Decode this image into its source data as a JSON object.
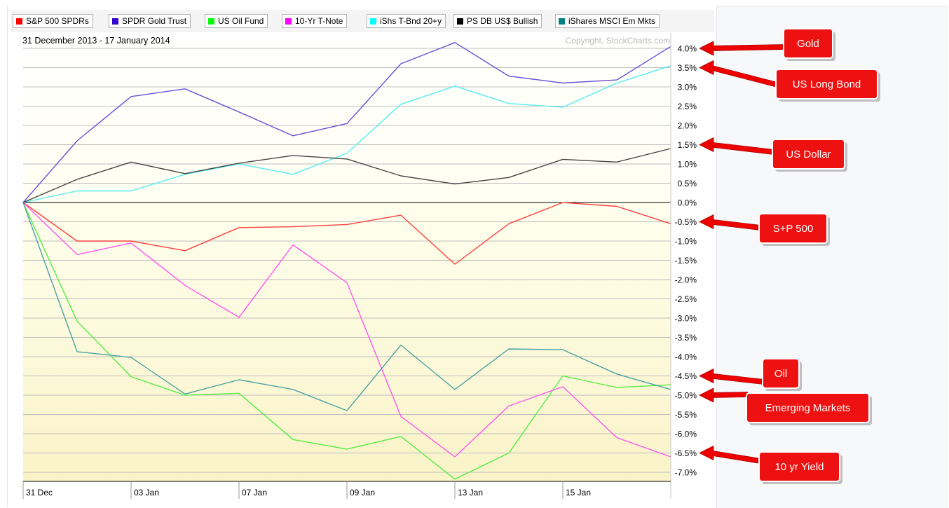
{
  "legend": [
    {
      "label": "S&P 500 SPDRs",
      "color": "#ff0000"
    },
    {
      "label": "SPDR Gold Trust",
      "color": "#3300cc"
    },
    {
      "label": "US Oil Fund",
      "color": "#00ff00"
    },
    {
      "label": "10-Yr T-Note",
      "color": "#ff00ff"
    },
    {
      "label": "iShs T-Bnd 20+y",
      "color": "#00ffff"
    },
    {
      "label": "PS DB US$ Bullish",
      "color": "#000000"
    },
    {
      "label": "iShares MSCI Em Mkts",
      "color": "#008080"
    }
  ],
  "chart_data": {
    "type": "line",
    "title": "31 December 2013 - 17 January 2014",
    "copyright": "Copyright, StockCharts.com",
    "x_tick_labels": [
      "31 Dec",
      "03 Jan",
      "07 Jan",
      "09 Jan",
      "13 Jan",
      "15 Jan"
    ],
    "x": [
      "31 Dec",
      "02 Jan",
      "03 Jan",
      "06 Jan",
      "07 Jan",
      "08 Jan",
      "09 Jan",
      "10 Jan",
      "13 Jan",
      "14 Jan",
      "15 Jan",
      "16 Jan",
      "17 Jan"
    ],
    "y_tick_labels": [
      "4.0%",
      "3.5%",
      "3.0%",
      "2.5%",
      "2.0%",
      "1.5%",
      "1.0%",
      "0.5%",
      "0.0%",
      "-0.5%",
      "-1.0%",
      "-1.5%",
      "-2.0%",
      "-2.5%",
      "-3.0%",
      "-3.5%",
      "-4.0%",
      "-4.5%",
      "-5.0%",
      "-5.5%",
      "-6.0%",
      "-6.5%",
      "-7.0%"
    ],
    "ylim": [
      -7.25,
      4.2
    ],
    "y_unit": "%",
    "grid": true,
    "series": [
      {
        "name": "S&P 500 SPDRs",
        "color": "#ff4040",
        "values": [
          0,
          -1.0,
          -1.0,
          -1.25,
          -0.65,
          -0.63,
          -0.57,
          -0.33,
          -1.6,
          -0.55,
          0.0,
          -0.1,
          -0.55
        ]
      },
      {
        "name": "SPDR Gold Trust",
        "color": "#6a4fd6",
        "values": [
          0,
          1.6,
          2.75,
          2.95,
          2.35,
          1.73,
          2.05,
          3.6,
          4.15,
          3.28,
          3.1,
          3.18,
          4.05
        ]
      },
      {
        "name": "US Oil Fund",
        "color": "#55ee44",
        "values": [
          0,
          -3.08,
          -4.52,
          -5.0,
          -4.95,
          -6.15,
          -6.4,
          -6.07,
          -7.18,
          -6.5,
          -4.5,
          -4.8,
          -4.73
        ]
      },
      {
        "name": "10-Yr T-Note",
        "color": "#ff55ee",
        "values": [
          0,
          -1.35,
          -1.05,
          -2.15,
          -2.98,
          -1.1,
          -2.08,
          -5.55,
          -6.6,
          -5.28,
          -4.78,
          -6.1,
          -6.6
        ]
      },
      {
        "name": "iShs T-Bnd 20+y",
        "color": "#55eeee",
        "values": [
          0,
          0.3,
          0.3,
          0.73,
          1.0,
          0.73,
          1.28,
          2.55,
          3.02,
          2.57,
          2.47,
          3.1,
          3.55
        ]
      },
      {
        "name": "PS DB US$ Bullish",
        "color": "#444444",
        "values": [
          0,
          0.6,
          1.05,
          0.75,
          1.02,
          1.22,
          1.13,
          0.69,
          0.48,
          0.65,
          1.12,
          1.05,
          1.4
        ]
      },
      {
        "name": "iShares MSCI Em Mkts",
        "color": "#4aa3a3",
        "values": [
          0,
          -3.87,
          -4.02,
          -4.97,
          -4.6,
          -4.85,
          -5.4,
          -3.7,
          -4.85,
          -3.8,
          -3.82,
          -4.45,
          -4.85
        ]
      }
    ]
  },
  "annotations": [
    {
      "label": "Gold",
      "points_to": 4.0
    },
    {
      "label": "US Long Bond",
      "points_to": 3.5
    },
    {
      "label": "US Dollar",
      "points_to": 1.5
    },
    {
      "label": "S+P 500",
      "points_to": -0.5
    },
    {
      "label": "Oil",
      "points_to": -4.5
    },
    {
      "label": "Emerging Markets",
      "points_to": -5.0
    },
    {
      "label": "10 yr Yield",
      "points_to": -6.5
    }
  ]
}
